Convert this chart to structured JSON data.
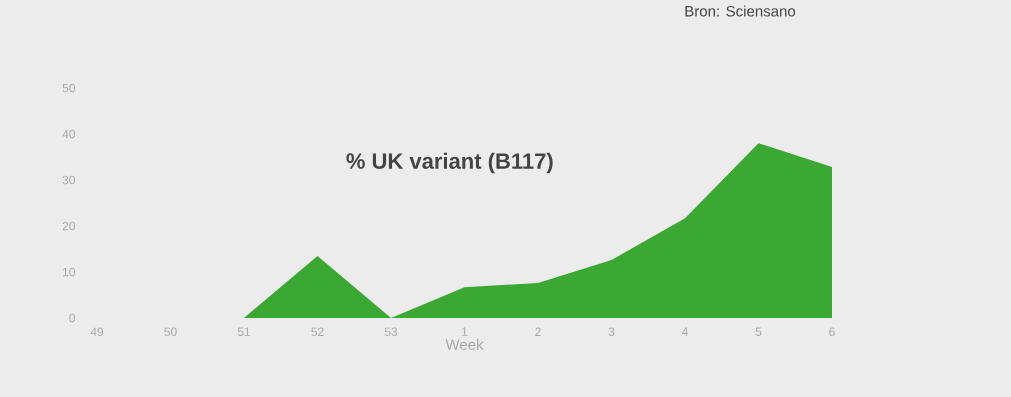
{
  "chart_data": {
    "type": "area",
    "title": "% UK variant (B117)",
    "xlabel": "Week",
    "annotations": [
      "Bron: Sciensano"
    ],
    "categories": [
      "49",
      "50",
      "51",
      "52",
      "53",
      "1",
      "2",
      "3",
      "4",
      "5",
      "6"
    ],
    "values": [
      0,
      0,
      0,
      13.5,
      0,
      6.7,
      7.6,
      12.6,
      21.7,
      38,
      32.8
    ],
    "color": "#3aa832",
    "ylim": [
      0,
      50
    ],
    "yticks": [
      0,
      10,
      20,
      30,
      40,
      50
    ]
  }
}
